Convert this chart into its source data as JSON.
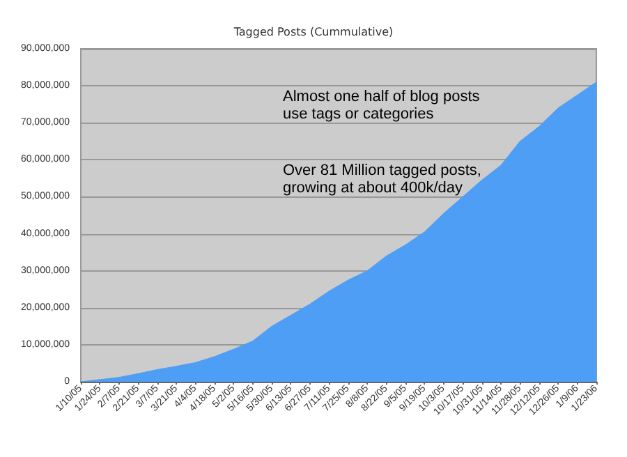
{
  "chart_data": {
    "type": "area",
    "title": "Tagged Posts (Cummulative)",
    "categories": [
      "1/10/05",
      "1/24/05",
      "2/7/05",
      "2/21/05",
      "3/7/05",
      "3/21/05",
      "4/4/05",
      "4/18/05",
      "5/2/05",
      "5/16/05",
      "5/30/05",
      "6/13/05",
      "6/27/05",
      "7/11/05",
      "7/25/05",
      "8/8/05",
      "8/22/05",
      "9/5/05",
      "9/19/05",
      "10/3/05",
      "10/17/05",
      "10/31/05",
      "11/14/05",
      "11/28/05",
      "12/12/05",
      "12/26/05",
      "1/9/06",
      "1/23/06"
    ],
    "series": [
      {
        "color": "#4f9ef5",
        "values": [
          0,
          600000,
          1200000,
          2200000,
          3300000,
          4200000,
          5200000,
          6800000,
          8800000,
          11000000,
          15000000,
          18000000,
          21000000,
          24500000,
          27500000,
          30000000,
          34000000,
          37000000,
          40500000,
          45500000,
          50000000,
          54500000,
          58500000,
          65000000,
          69000000,
          74000000,
          77500000,
          81000000
        ]
      }
    ],
    "ylim": [
      0,
      90000000
    ],
    "yticks": [
      0,
      {
        "value": 10000000,
        "label": "10,000,000"
      },
      {
        "value": 20000000,
        "label": "20,000,000"
      },
      {
        "value": 30000000,
        "label": "30,000,000"
      },
      {
        "value": 40000000,
        "label": "40,000,000"
      },
      {
        "value": 50000000,
        "label": "50,000,000"
      },
      {
        "value": 60000000,
        "label": "60,000,000"
      },
      {
        "value": 70000000,
        "label": "70,000,000"
      },
      {
        "value": 80000000,
        "label": "80,000,000"
      },
      {
        "value": 90000000,
        "label": "90,000,000"
      }
    ],
    "grid": "y",
    "annotations": [
      "Almost one half of blog posts\nuse tags or categories",
      "Over 81 Million tagged posts,\ngrowing at about 400k/day"
    ]
  }
}
